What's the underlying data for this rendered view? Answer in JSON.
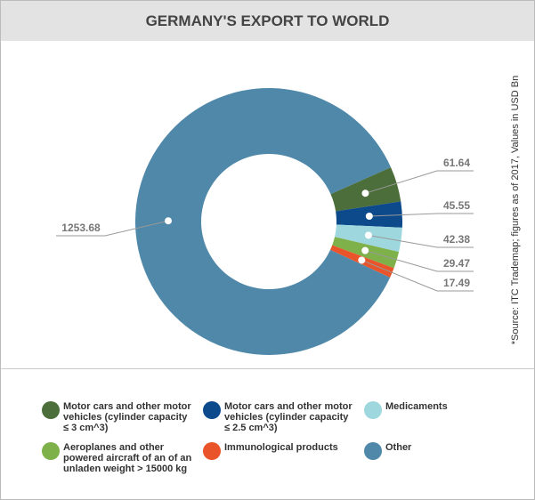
{
  "chart_data": {
    "type": "donut",
    "title": "GERMANY'S EXPORT TO WORLD",
    "note": "*Source: ITC Trademap; figures as of 2017, Values in USD Bn",
    "categories": [
      "Motor cars and other motor vehicles (cylinder capacity ≤ 3 cm^3)",
      "Motor cars and other motor vehicles (cylinder capacity ≤ 2.5 cm^3)",
      "Medicaments",
      "Aeroplanes and other powered aircraft of an of an unladen weight > 15000 kg",
      "Immunological products",
      "Other"
    ],
    "values": [
      61.64,
      45.55,
      42.38,
      29.47,
      17.49,
      1253.68
    ],
    "colors": [
      "#4b6e3b",
      "#0c4a8c",
      "#9fd7df",
      "#7eb14a",
      "#e9542a",
      "#5088aa"
    ]
  }
}
